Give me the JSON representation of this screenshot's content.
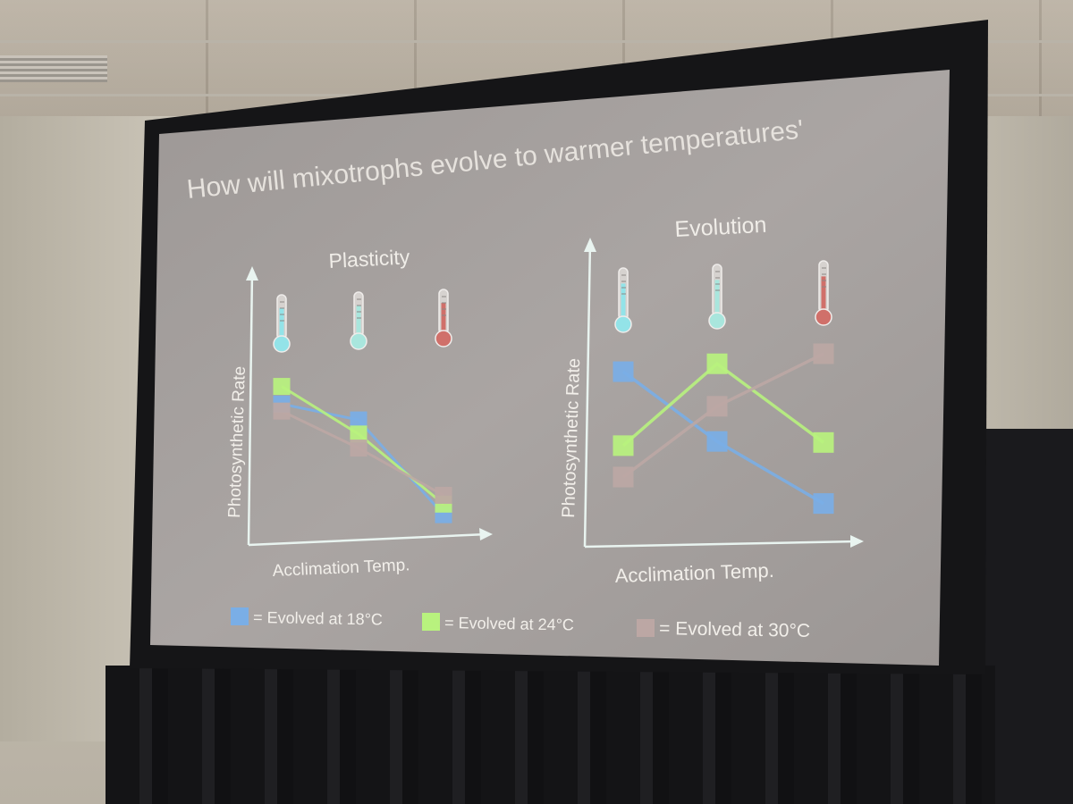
{
  "slide": {
    "title": "How will mixotrophs evolve to warmer temperatures'"
  },
  "colors": {
    "evolved_18": "#7aaee6",
    "evolved_24": "#b8f27e",
    "evolved_30": "#bca7a4",
    "thermo_cool": "#93e3e8",
    "thermo_mid": "#a9e6dd",
    "thermo_hot": "#d0706a"
  },
  "legend": [
    {
      "label": "= Evolved at 18°C",
      "color_key": "evolved_18"
    },
    {
      "label": "= Evolved at 24°C",
      "color_key": "evolved_24"
    },
    {
      "label": "= Evolved at 30°C",
      "color_key": "evolved_30"
    }
  ],
  "chart_data": [
    {
      "type": "line",
      "title": "Plasticity",
      "xlabel": "Acclimation Temp.",
      "ylabel": "Photosynthetic Rate",
      "categories": [
        "",
        "",
        ""
      ],
      "category_icons": [
        "thermometer-cool-icon",
        "thermometer-mid-icon",
        "thermometer-hot-icon"
      ],
      "ylim": [
        0,
        10
      ],
      "series": [
        {
          "name": "= Evolved at 18°C",
          "color_key": "evolved_18",
          "values": [
            7.6,
            6.5,
            0.9
          ]
        },
        {
          "name": "= Evolved at 24°C",
          "color_key": "evolved_24",
          "values": [
            8.6,
            5.7,
            1.5
          ]
        },
        {
          "name": "= Evolved at 30°C",
          "color_key": "evolved_30",
          "values": [
            7.2,
            4.9,
            2.0
          ]
        }
      ]
    },
    {
      "type": "line",
      "title": "Evolution",
      "xlabel": "Acclimation Temp.",
      "ylabel": "Photosynthetic Rate",
      "categories": [
        "",
        "",
        ""
      ],
      "category_icons": [
        "thermometer-cool-icon",
        "thermometer-mid-icon",
        "thermometer-hot-icon"
      ],
      "ylim": [
        0,
        10
      ],
      "series": [
        {
          "name": "= Evolved at 18°C",
          "color_key": "evolved_18",
          "values": [
            8.5,
            4.6,
            1.1
          ]
        },
        {
          "name": "= Evolved at 24°C",
          "color_key": "evolved_24",
          "values": [
            4.5,
            8.8,
            4.4
          ]
        },
        {
          "name": "= Evolved at 30°C",
          "color_key": "evolved_30",
          "values": [
            2.8,
            6.5,
            9.2
          ]
        }
      ]
    }
  ]
}
